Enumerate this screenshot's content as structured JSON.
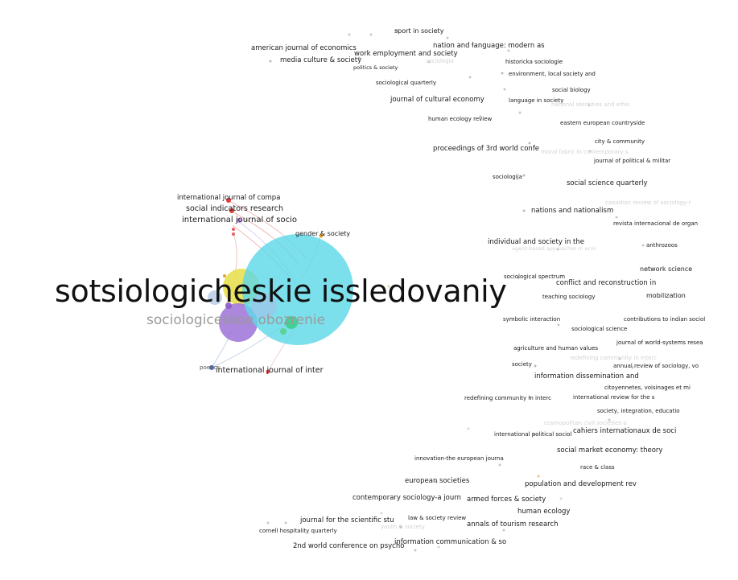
{
  "map": {
    "main_label": "sotsiologicheskie issledovaniy",
    "second_label": "sociologiceskoe obozrenie",
    "clusters": [
      {
        "name": "sotsiologicheskie issledovaniy",
        "color": "#5fd8e8"
      },
      {
        "name": "sociologiceskoe obozrenie",
        "color": "#a27ad9"
      }
    ],
    "labels": [
      {
        "text": "sport in society",
        "faint": false
      },
      {
        "text": "nation and language: modern as",
        "faint": false
      },
      {
        "text": "american journal of economics",
        "faint": false
      },
      {
        "text": "work employment and society",
        "faint": false
      },
      {
        "text": "media culture & society",
        "faint": false
      },
      {
        "text": "sociologia",
        "faint": true
      },
      {
        "text": "historicka sociologie",
        "faint": false
      },
      {
        "text": "politics & society",
        "faint": false
      },
      {
        "text": "environment, local society and",
        "faint": false
      },
      {
        "text": "sociological quarterly",
        "faint": false
      },
      {
        "text": "social biology",
        "faint": false
      },
      {
        "text": "journal of cultural economy",
        "faint": false
      },
      {
        "text": "language in society",
        "faint": false
      },
      {
        "text": "national identities and ethic",
        "faint": true
      },
      {
        "text": "human ecology review",
        "faint": false
      },
      {
        "text": "eastern european countryside",
        "faint": false
      },
      {
        "text": "city & community",
        "faint": false
      },
      {
        "text": "proceedings of 3rd world confe",
        "faint": false
      },
      {
        "text": "moral fabric in contemporary s",
        "faint": true
      },
      {
        "text": "journal of political & militar",
        "faint": false
      },
      {
        "text": "sociologija",
        "faint": false
      },
      {
        "text": "social science quarterly",
        "faint": false
      },
      {
        "text": "canadian review of sociology-r",
        "faint": true
      },
      {
        "text": "nations and nationalism",
        "faint": false
      },
      {
        "text": "revista internacional de organ",
        "faint": false
      },
      {
        "text": "individual and society in the",
        "faint": false
      },
      {
        "text": "anthrozoos",
        "faint": false
      },
      {
        "text": "agent-based approaches in ecol",
        "faint": true
      },
      {
        "text": "network science",
        "faint": false
      },
      {
        "text": "sociological spectrum",
        "faint": false
      },
      {
        "text": "conflict and reconstruction in",
        "faint": false
      },
      {
        "text": "teaching sociology",
        "faint": false
      },
      {
        "text": "mobilization",
        "faint": false
      },
      {
        "text": "symbolic interaction",
        "faint": false
      },
      {
        "text": "contributions to indian sociol",
        "faint": false
      },
      {
        "text": "sociological science",
        "faint": false
      },
      {
        "text": "journal of world-systems resea",
        "faint": false
      },
      {
        "text": "agriculture and human values",
        "faint": false
      },
      {
        "text": "redefining community in interc",
        "faint": true
      },
      {
        "text": "society",
        "faint": false
      },
      {
        "text": "annual review of sociology, vo",
        "faint": false
      },
      {
        "text": "information dissemination and",
        "faint": false
      },
      {
        "text": "citoyennetes, voisinages et mi",
        "faint": false
      },
      {
        "text": "redefining community in interc",
        "faint": false
      },
      {
        "text": "international review for the s",
        "faint": false
      },
      {
        "text": "society, integration, educatio",
        "faint": false
      },
      {
        "text": "cosmopolitan civil societies-a",
        "faint": true
      },
      {
        "text": "cahiers internationaux de soci",
        "faint": false
      },
      {
        "text": "international political sociol",
        "faint": false
      },
      {
        "text": "social market economy: theory",
        "faint": false
      },
      {
        "text": "innovation-the european journa",
        "faint": false
      },
      {
        "text": "race & class",
        "faint": false
      },
      {
        "text": "european societies",
        "faint": false
      },
      {
        "text": "population and development rev",
        "faint": false
      },
      {
        "text": "contemporary sociology-a journ",
        "faint": false
      },
      {
        "text": "armed forces & society",
        "faint": false
      },
      {
        "text": "human ecology",
        "faint": false
      },
      {
        "text": "law & society review",
        "faint": false
      },
      {
        "text": "journal for the scientific stu",
        "faint": false
      },
      {
        "text": "annals of tourism research",
        "faint": false
      },
      {
        "text": "youth & society",
        "faint": true
      },
      {
        "text": "cornell hospitality quarterly",
        "faint": false
      },
      {
        "text": "information communication & so",
        "faint": false
      },
      {
        "text": "2nd world conference on psycho",
        "faint": false
      },
      {
        "text": "international journal of compa",
        "faint": false
      },
      {
        "text": "social indicators research",
        "faint": false
      },
      {
        "text": "international journal of socio",
        "faint": false
      },
      {
        "text": "gender & society",
        "faint": false
      },
      {
        "text": "international journal of inter",
        "faint": false
      },
      {
        "text": "poetics",
        "faint": false
      }
    ]
  }
}
